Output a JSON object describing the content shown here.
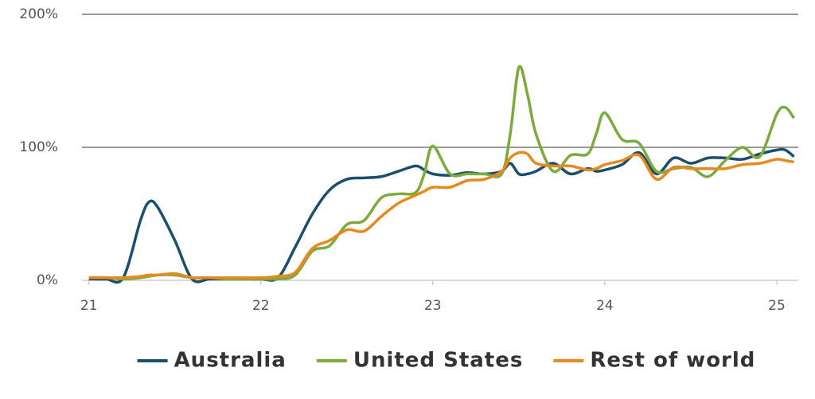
{
  "chart_data": {
    "type": "line",
    "x": [
      21.0,
      21.1,
      21.2,
      21.3,
      21.35,
      21.4,
      21.5,
      21.6,
      21.7,
      21.8,
      21.9,
      22.0,
      22.1,
      22.2,
      22.3,
      22.4,
      22.5,
      22.6,
      22.7,
      22.8,
      22.9,
      22.95,
      23.0,
      23.1,
      23.2,
      23.3,
      23.4,
      23.45,
      23.5,
      23.55,
      23.6,
      23.7,
      23.8,
      23.9,
      23.95,
      24.0,
      24.1,
      24.2,
      24.3,
      24.4,
      24.5,
      24.6,
      24.7,
      24.8,
      24.9,
      25.0,
      25.05,
      25.1
    ],
    "series": [
      {
        "name": "Australia",
        "color": "#1a4f6e",
        "values": [
          1,
          1,
          2,
          45,
          59,
          55,
          30,
          1,
          1,
          1,
          1,
          1,
          2,
          25,
          50,
          68,
          76,
          77,
          78,
          82,
          86,
          83,
          80,
          79,
          81,
          80,
          82,
          88,
          80,
          80,
          82,
          88,
          80,
          84,
          82,
          83,
          87,
          96,
          80,
          92,
          88,
          92,
          92,
          91,
          95,
          98,
          98,
          93
        ]
      },
      {
        "name": "United States",
        "color": "#7aab3c",
        "values": [
          2,
          2,
          1,
          2,
          3,
          4,
          4,
          2,
          2,
          1,
          1,
          1,
          1,
          4,
          22,
          26,
          42,
          45,
          62,
          65,
          66,
          80,
          101,
          80,
          80,
          80,
          80,
          110,
          160,
          140,
          110,
          82,
          94,
          95,
          110,
          126,
          106,
          103,
          82,
          84,
          85,
          78,
          90,
          100,
          93,
          125,
          130,
          122
        ]
      },
      {
        "name": "Rest of world",
        "color": "#e8891e",
        "values": [
          2,
          2,
          2,
          3,
          4,
          4,
          5,
          2,
          2,
          2,
          2,
          2,
          3,
          6,
          24,
          30,
          38,
          37,
          48,
          58,
          64,
          67,
          70,
          70,
          75,
          76,
          82,
          92,
          96,
          95,
          88,
          86,
          86,
          83,
          84,
          87,
          90,
          94,
          76,
          85,
          84,
          84,
          84,
          87,
          88,
          91,
          90,
          89
        ]
      }
    ],
    "xlim": [
      20.96,
      25.125
    ],
    "xticks": [
      21,
      22,
      23,
      24,
      25
    ],
    "ylim": [
      0,
      200
    ],
    "yticks": [
      {
        "value": 0,
        "label": "0%"
      },
      {
        "value": 100,
        "label": "100%"
      },
      {
        "value": 200,
        "label": "200%"
      }
    ],
    "grid": true,
    "legend": "bottom"
  }
}
